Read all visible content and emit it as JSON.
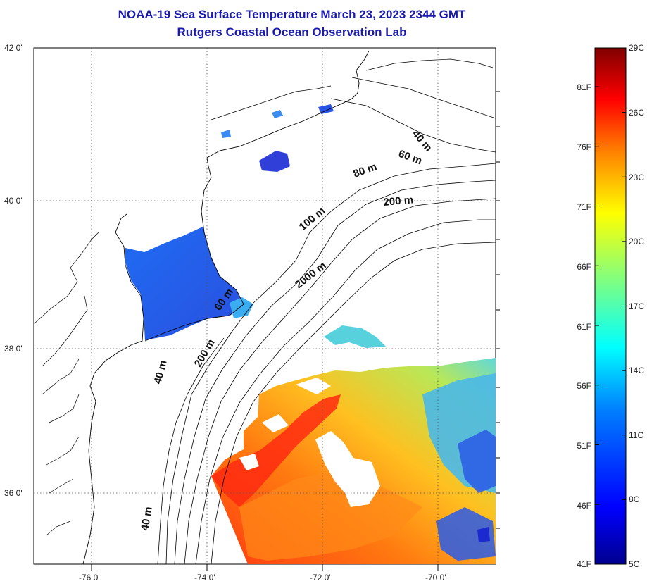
{
  "title_line1": "NOAA-19 Sea Surface Temperature March 23, 2023 2344 GMT",
  "title_line2": "Rutgers Coastal Ocean Observation Lab",
  "map": {
    "lat_ticks": [
      "42 0'",
      "40 0'",
      "38 0'",
      "36 0'"
    ],
    "lon_ticks": [
      "-76 0'",
      "-74 0'",
      "-72 0'",
      "-70 0'"
    ],
    "depth_labels": [
      "40 m",
      "60 m",
      "80 m",
      "200 m",
      "100 m",
      "2000 m",
      "60 m",
      "200 m",
      "40 m",
      "40 m"
    ]
  },
  "colorbar": {
    "celsius_labels": [
      "29C",
      "26C",
      "23C",
      "20C",
      "17C",
      "14C",
      "11C",
      "8C",
      "5C"
    ],
    "fahrenheit_labels": [
      "81F",
      "76F",
      "71F",
      "66F",
      "61F",
      "56F",
      "51F",
      "46F",
      "41F"
    ],
    "colors": [
      "#00008f",
      "#0000ff",
      "#0080ff",
      "#00ffff",
      "#80ff80",
      "#ffff00",
      "#ff8000",
      "#ff0000",
      "#800000"
    ]
  }
}
